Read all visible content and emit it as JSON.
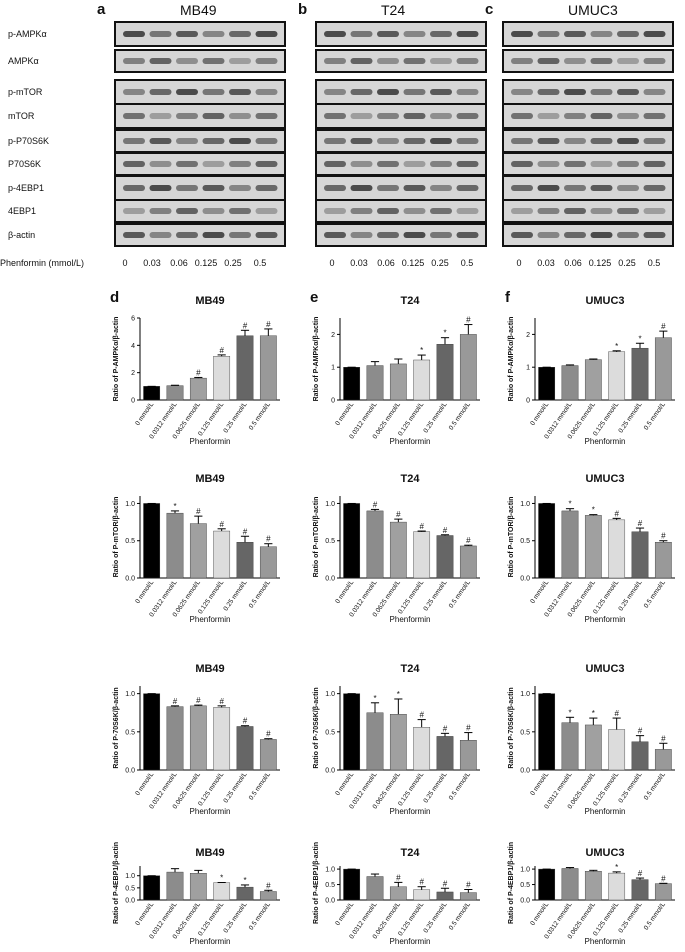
{
  "blots": {
    "panels": [
      {
        "label": "a",
        "title": "MB49"
      },
      {
        "label": "b",
        "title": "T24"
      },
      {
        "label": "c",
        "title": "UMUC3"
      }
    ],
    "rows": [
      "p-AMPKα",
      "AMPKα",
      "p-mTOR",
      "mTOR",
      "p-P70S6K",
      "P70S6K",
      "p-4EBP1",
      "4EBP1",
      "β-actin"
    ],
    "xlabel": "Phenformin (mmol/L)",
    "lanes": [
      "0",
      "0.03",
      "0.06",
      "0.125",
      "0.25",
      "0.5"
    ]
  },
  "chart_data": [
    {
      "type": "bar",
      "panel": "d",
      "title": "MB49",
      "ylabel": "Ratio of P-AMPKα/β-actin",
      "xlabel": "Phenformin",
      "categories": [
        "0 mmol/L",
        "0.0312 mmol/L",
        "0.0625 mmol/L",
        "0.125 mmol/L",
        "0.25 mmol/L",
        "0.5 mmol/L"
      ],
      "values": [
        1,
        1.05,
        1.6,
        3.2,
        4.7,
        4.7
      ],
      "errors": [
        0,
        0.03,
        0.05,
        0.1,
        0.4,
        0.5
      ],
      "significance": [
        null,
        null,
        "#",
        "#",
        "#",
        "#"
      ],
      "colors": [
        "#000000",
        "#8c8c8c",
        "#a0a0a0",
        "#dcdcdc",
        "#666666",
        "#999999"
      ],
      "ylim": [
        0,
        6
      ],
      "yticks": [
        0,
        2,
        4,
        6
      ]
    },
    {
      "type": "bar",
      "panel": "e",
      "title": "T24",
      "ylabel": "Ratio of P-AMPKα/β-actin",
      "xlabel": "Phenformin",
      "categories": [
        "0 mmol/L",
        "0.0312 mmol/L",
        "0.0625 mmol/L",
        "0.125 mmol/L",
        "0.25 mmol/L",
        "0.5 mmol/L"
      ],
      "values": [
        1,
        1.05,
        1.1,
        1.22,
        1.7,
        2.0
      ],
      "errors": [
        0,
        0.12,
        0.15,
        0.15,
        0.2,
        0.3
      ],
      "significance": [
        null,
        null,
        null,
        "*",
        "*",
        "#"
      ],
      "colors": [
        "#000000",
        "#8c8c8c",
        "#a0a0a0",
        "#dcdcdc",
        "#666666",
        "#999999"
      ],
      "ylim": [
        0,
        2.5
      ],
      "yticks": [
        0,
        1,
        2
      ]
    },
    {
      "type": "bar",
      "panel": "f",
      "title": "UMUC3",
      "ylabel": "Ratio of P-AMPKα/β-actin",
      "xlabel": "Phenformin",
      "categories": [
        "0 mmol/L",
        "0.0312 mmol/L",
        "0.0625 mmol/L",
        "0.125 mmol/L",
        "0.25 mmol/L",
        "0.5 mmol/L"
      ],
      "values": [
        1,
        1.05,
        1.23,
        1.47,
        1.58,
        1.9
      ],
      "errors": [
        0,
        0.02,
        0.02,
        0.03,
        0.15,
        0.2
      ],
      "significance": [
        null,
        null,
        null,
        "*",
        "*",
        "#"
      ],
      "colors": [
        "#000000",
        "#8c8c8c",
        "#a0a0a0",
        "#dcdcdc",
        "#666666",
        "#999999"
      ],
      "ylim": [
        0,
        2.5
      ],
      "yticks": [
        0,
        1,
        2
      ]
    },
    {
      "type": "bar",
      "title": "MB49",
      "ylabel": "Ratio of P-mTOR/β-actin",
      "xlabel": "Phenformin",
      "categories": [
        "0 mmol/L",
        "0.0312 mmol/L",
        "0.0625 mmol/L",
        "0.125 mmol/L",
        "0.25 mmol/L",
        "0.5 mmol/L"
      ],
      "values": [
        1,
        0.87,
        0.73,
        0.63,
        0.48,
        0.42
      ],
      "errors": [
        0,
        0.03,
        0.1,
        0.03,
        0.08,
        0.04
      ],
      "significance": [
        null,
        "*",
        "#",
        "#",
        "#",
        "#"
      ],
      "colors": [
        "#000000",
        "#8c8c8c",
        "#a0a0a0",
        "#dcdcdc",
        "#666666",
        "#999999"
      ],
      "ylim": [
        0,
        1.1
      ],
      "yticks": [
        {
          "value": 0,
          "label": "0.0"
        },
        0.5,
        {
          "value": 1,
          "label": "1.0"
        }
      ]
    },
    {
      "type": "bar",
      "title": "T24",
      "ylabel": "Ratio of P-mTOR/β-actin",
      "xlabel": "Phenformin",
      "categories": [
        "0 mmol/L",
        "0.0312 mmol/L",
        "0.0625 mmol/L",
        "0.125 mmol/L",
        "0.25 mmol/L",
        "0.5 mmol/L"
      ],
      "values": [
        1,
        0.9,
        0.75,
        0.62,
        0.57,
        0.43
      ],
      "errors": [
        0,
        0.02,
        0.04,
        0.01,
        0.01,
        0.01
      ],
      "significance": [
        null,
        "#",
        "#",
        "#",
        "#",
        "#"
      ],
      "colors": [
        "#000000",
        "#8c8c8c",
        "#a0a0a0",
        "#dcdcdc",
        "#666666",
        "#999999"
      ],
      "ylim": [
        0,
        1.1
      ],
      "yticks": [
        {
          "value": 0,
          "label": "0.0"
        },
        0.5,
        {
          "value": 1,
          "label": "1.0"
        }
      ]
    },
    {
      "type": "bar",
      "title": "UMUC3",
      "ylabel": "Ratio of P-mTOR/β-actin",
      "xlabel": "Phenformin",
      "categories": [
        "0 mmol/L",
        "0.0312 mmol/L",
        "0.0625 mmol/L",
        "0.125 mmol/L",
        "0.25 mmol/L",
        "0.5 mmol/L"
      ],
      "values": [
        1,
        0.9,
        0.84,
        0.78,
        0.62,
        0.48
      ],
      "errors": [
        0,
        0.03,
        0.01,
        0.02,
        0.05,
        0.02
      ],
      "significance": [
        null,
        "*",
        "*",
        "#",
        "#",
        "#"
      ],
      "colors": [
        "#000000",
        "#8c8c8c",
        "#a0a0a0",
        "#dcdcdc",
        "#666666",
        "#999999"
      ],
      "ylim": [
        0,
        1.1
      ],
      "yticks": [
        {
          "value": 0,
          "label": "0.0"
        },
        0.5,
        {
          "value": 1,
          "label": "1.0"
        }
      ]
    },
    {
      "type": "bar",
      "title": "MB49",
      "ylabel": "Ratio of P-70S6K/β-actin",
      "xlabel": "Phenformin",
      "categories": [
        "0 mmol/L",
        "0.0312 mmol/L",
        "0.0625 mmol/L",
        "0.125 mmol/L",
        "0.25 mmol/L",
        "0.5 mmol/L"
      ],
      "values": [
        1,
        0.83,
        0.84,
        0.82,
        0.57,
        0.4
      ],
      "errors": [
        0,
        0.01,
        0.01,
        0.02,
        0.01,
        0.01
      ],
      "significance": [
        null,
        "#",
        "#",
        "#",
        "#",
        "#"
      ],
      "colors": [
        "#000000",
        "#8c8c8c",
        "#a0a0a0",
        "#dcdcdc",
        "#666666",
        "#999999"
      ],
      "ylim": [
        0,
        1.1
      ],
      "yticks": [
        {
          "value": 0,
          "label": "0.0"
        },
        0.5,
        {
          "value": 1,
          "label": "1.0"
        }
      ]
    },
    {
      "type": "bar",
      "title": "T24",
      "ylabel": "Ratio of P-70S6K/β-actin",
      "xlabel": "Phenformin",
      "categories": [
        "0 mmol/L",
        "0.0312 mmol/L",
        "0.0625 mmol/L",
        "0.125 mmol/L",
        "0.25 mmol/L",
        "0.5 mmol/L"
      ],
      "values": [
        1,
        0.75,
        0.73,
        0.56,
        0.44,
        0.39
      ],
      "errors": [
        0,
        0.13,
        0.2,
        0.1,
        0.04,
        0.1
      ],
      "significance": [
        null,
        "*",
        "*",
        "#",
        "#",
        "#"
      ],
      "colors": [
        "#000000",
        "#8c8c8c",
        "#a0a0a0",
        "#dcdcdc",
        "#666666",
        "#999999"
      ],
      "ylim": [
        0,
        1.1
      ],
      "yticks": [
        {
          "value": 0,
          "label": "0.0"
        },
        0.5,
        {
          "value": 1,
          "label": "1.0"
        }
      ]
    },
    {
      "type": "bar",
      "title": "UMUC3",
      "ylabel": "Ratio of P-70S6K/β-actin",
      "xlabel": "Phenformin",
      "categories": [
        "0 mmol/L",
        "0.0312 mmol/L",
        "0.0625 mmol/L",
        "0.125 mmol/L",
        "0.25 mmol/L",
        "0.5 mmol/L"
      ],
      "values": [
        1,
        0.62,
        0.59,
        0.53,
        0.37,
        0.27
      ],
      "errors": [
        0,
        0.07,
        0.09,
        0.15,
        0.08,
        0.08
      ],
      "significance": [
        null,
        "*",
        "*",
        "#",
        "#",
        "#"
      ],
      "colors": [
        "#000000",
        "#8c8c8c",
        "#a0a0a0",
        "#dcdcdc",
        "#666666",
        "#999999"
      ],
      "ylim": [
        0,
        1.1
      ],
      "yticks": [
        {
          "value": 0,
          "label": "0.0"
        },
        0.5,
        {
          "value": 1,
          "label": "1.0"
        }
      ]
    },
    {
      "type": "bar",
      "title": "MB49",
      "ylabel": "Ratio of P-4EBP1/β-actin",
      "xlabel": "Phenformin",
      "categories": [
        "0 mmol/L",
        "0.0312 mmol/L",
        "0.0625 mmol/L",
        "0.125 mmol/L",
        "0.25 mmol/L",
        "0.5 mmol/L"
      ],
      "values": [
        1,
        1.15,
        1.1,
        0.71,
        0.53,
        0.35
      ],
      "errors": [
        0,
        0.14,
        0.12,
        0.01,
        0.09,
        0.05
      ],
      "significance": [
        null,
        null,
        null,
        "*",
        "*",
        "#"
      ],
      "colors": [
        "#000000",
        "#8c8c8c",
        "#a0a0a0",
        "#dcdcdc",
        "#666666",
        "#999999"
      ],
      "ylim": [
        0,
        1.4
      ],
      "yticks": [
        {
          "value": 0,
          "label": "0.0"
        },
        0.5,
        {
          "value": 1,
          "label": "1.0"
        }
      ]
    },
    {
      "type": "bar",
      "title": "T24",
      "ylabel": "Ratio of P-4EBP1/β-actin",
      "xlabel": "Phenformin",
      "categories": [
        "0 mmol/L",
        "0.0312 mmol/L",
        "0.0625 mmol/L",
        "0.125 mmol/L",
        "0.25 mmol/L",
        "0.5 mmol/L"
      ],
      "values": [
        1,
        0.76,
        0.43,
        0.33,
        0.26,
        0.24
      ],
      "errors": [
        0,
        0.08,
        0.14,
        0.1,
        0.12,
        0.1
      ],
      "significance": [
        null,
        null,
        "#",
        "#",
        "#",
        "#"
      ],
      "colors": [
        "#000000",
        "#8c8c8c",
        "#a0a0a0",
        "#dcdcdc",
        "#666666",
        "#999999"
      ],
      "ylim": [
        0,
        1.1
      ],
      "yticks": [
        {
          "value": 0,
          "label": "0.0"
        },
        0.5,
        {
          "value": 1,
          "label": "1.0"
        }
      ]
    },
    {
      "type": "bar",
      "title": "UMUC3",
      "ylabel": "Ratio of P-4EBP1/β-actin",
      "xlabel": "Phenformin",
      "categories": [
        "0 mmol/L",
        "0.0312 mmol/L",
        "0.0625 mmol/L",
        "0.125 mmol/L",
        "0.25 mmol/L",
        "0.5 mmol/L"
      ],
      "values": [
        1,
        1.02,
        0.93,
        0.87,
        0.66,
        0.53
      ],
      "errors": [
        0,
        0.03,
        0.03,
        0.04,
        0.05,
        0.01
      ],
      "significance": [
        null,
        null,
        null,
        "*",
        "#",
        "#"
      ],
      "colors": [
        "#000000",
        "#8c8c8c",
        "#a0a0a0",
        "#dcdcdc",
        "#666666",
        "#999999"
      ],
      "ylim": [
        0,
        1.1
      ],
      "yticks": [
        {
          "value": 0,
          "label": "0.0"
        },
        0.5,
        {
          "value": 1,
          "label": "1.0"
        }
      ]
    }
  ]
}
